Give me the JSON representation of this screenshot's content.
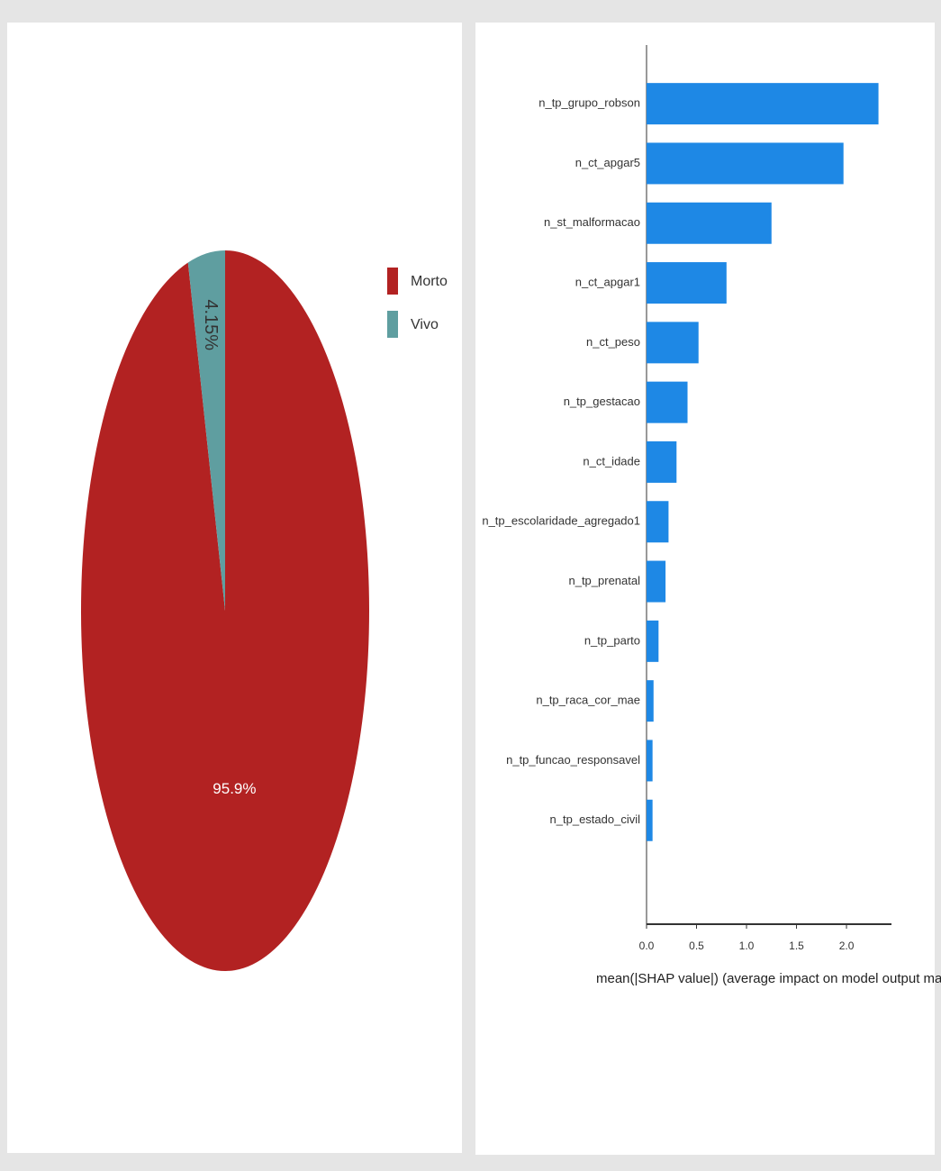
{
  "chart_data": [
    {
      "type": "pie",
      "categories": [
        "Morto",
        "Vivo"
      ],
      "values": [
        95.9,
        4.15
      ],
      "value_labels": [
        "95.9%",
        "4.15%"
      ],
      "colors": [
        "#b22222",
        "#5f9ea0"
      ],
      "legend": "right"
    },
    {
      "type": "barh",
      "xlabel": "mean(|SHAP value|) (average impact on model output magnitude",
      "categories": [
        "n_tp_grupo_robson",
        "n_ct_apgar5",
        "n_st_malformacao",
        "n_ct_apgar1",
        "n_ct_peso",
        "n_tp_gestacao",
        "n_ct_idade",
        "n_tp_escolaridade_agregado1",
        "n_tp_prenatal",
        "n_tp_parto",
        "n_tp_raca_cor_mae",
        "n_tp_funcao_responsavel",
        "n_tp_estado_civil"
      ],
      "values": [
        2.32,
        1.97,
        1.25,
        0.8,
        0.52,
        0.41,
        0.3,
        0.22,
        0.19,
        0.12,
        0.07,
        0.06,
        0.06
      ],
      "color": "#1e88e5",
      "xlim": [
        0,
        2.45
      ],
      "xticks": [
        {
          "value": 0,
          "label": "0.0"
        },
        0.5,
        {
          "value": 1,
          "label": "1.0"
        },
        1.5,
        {
          "value": 2,
          "label": "2.0"
        }
      ]
    }
  ]
}
